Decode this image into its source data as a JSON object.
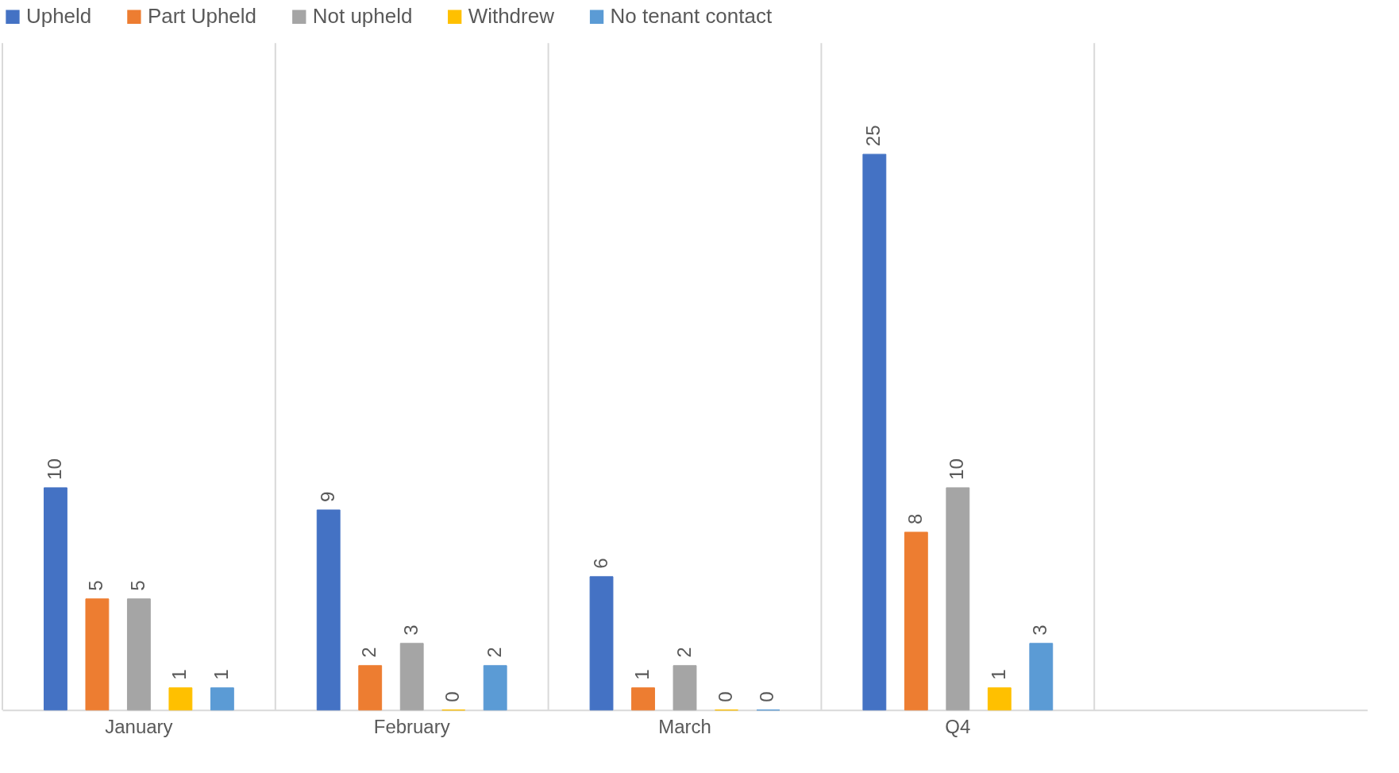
{
  "chart_data": {
    "type": "bar",
    "categories": [
      "January",
      "February",
      "March",
      "Q4",
      null
    ],
    "series": [
      {
        "name": "Upheld",
        "color": "#4472c4",
        "values": [
          10,
          9,
          6,
          25,
          null
        ]
      },
      {
        "name": "Part Upheld",
        "color": "#ed7d31",
        "values": [
          5,
          2,
          1,
          8,
          null
        ]
      },
      {
        "name": "Not upheld",
        "color": "#a5a5a5",
        "values": [
          5,
          3,
          2,
          10,
          null
        ]
      },
      {
        "name": "Withdrew",
        "color": "#ffc000",
        "values": [
          1,
          0,
          0,
          1,
          null
        ]
      },
      {
        "name": "No tenant contact",
        "color": "#5b9bd5",
        "values": [
          1,
          2,
          0,
          3,
          null
        ]
      }
    ],
    "ylim": [
      0,
      30
    ],
    "data_labels": true,
    "grid": "x",
    "legend": "top",
    "tick_labels": "x"
  }
}
